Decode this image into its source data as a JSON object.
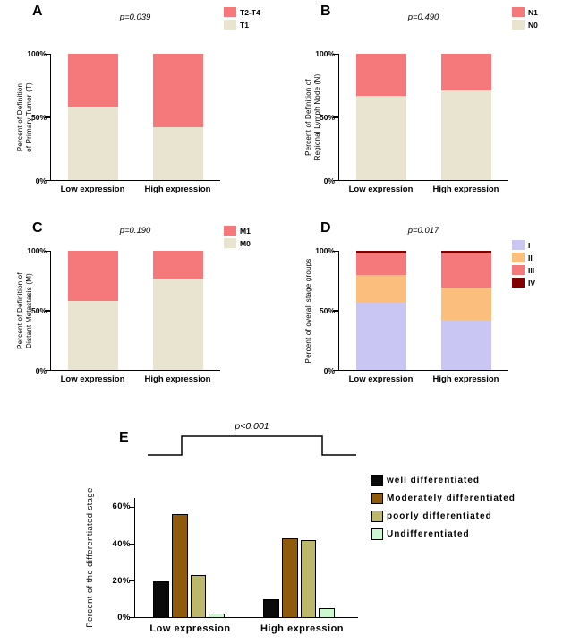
{
  "figure": {
    "background": "#FFFFFF"
  },
  "chart_data": [
    {
      "panel": "A",
      "type": "stacked_bar_100",
      "p_value": "p=0.039",
      "ylabel_lines": [
        "Percent of Definition",
        "of Primary Tumor (T)"
      ],
      "categories": [
        "Low expression",
        "High expression"
      ],
      "ylim": [
        0,
        100
      ],
      "yticks": [
        {
          "label": "100%",
          "value": 100
        },
        {
          "label": "50%",
          "value": 50
        },
        {
          "label": "0%",
          "value": 0
        }
      ],
      "legend": [
        {
          "label": "T2-T4",
          "color": "#F5797B"
        },
        {
          "label": "T1",
          "color": "#E8E4CF"
        }
      ],
      "series": [
        {
          "name": "T1",
          "color": "#E8E4CF",
          "values": [
            58,
            42
          ]
        },
        {
          "name": "T2-T4",
          "color": "#F5797B",
          "values": [
            42,
            58
          ]
        }
      ]
    },
    {
      "panel": "B",
      "type": "stacked_bar_100",
      "p_value": "p=0.490",
      "ylabel_lines": [
        "Percent of Definition of",
        "Regional Lymph Node (N)"
      ],
      "categories": [
        "Low expression",
        "High expression"
      ],
      "ylim": [
        0,
        100
      ],
      "yticks": [
        {
          "label": "100%",
          "value": 100
        },
        {
          "label": "50%",
          "value": 50
        },
        {
          "label": "0%",
          "value": 0
        }
      ],
      "legend": [
        {
          "label": "N1",
          "color": "#F5797B"
        },
        {
          "label": "N0",
          "color": "#E8E4CF"
        }
      ],
      "series": [
        {
          "name": "N0",
          "color": "#E8E4CF",
          "values": [
            67,
            71
          ]
        },
        {
          "name": "N1",
          "color": "#F5797B",
          "values": [
            33,
            29
          ]
        }
      ]
    },
    {
      "panel": "C",
      "type": "stacked_bar_100",
      "p_value": "p=0.190",
      "ylabel_lines": [
        "Percent of Definition of",
        "Distant Metastasis (M)"
      ],
      "categories": [
        "Low expression",
        "High expression"
      ],
      "ylim": [
        0,
        100
      ],
      "yticks": [
        {
          "label": "100%",
          "value": 100
        },
        {
          "label": "50%",
          "value": 50
        },
        {
          "label": "0%",
          "value": 0
        }
      ],
      "legend": [
        {
          "label": "M1",
          "color": "#F5797B"
        },
        {
          "label": "M0",
          "color": "#E8E4CF"
        }
      ],
      "series": [
        {
          "name": "M0",
          "color": "#E8E4CF",
          "values": [
            58,
            77
          ]
        },
        {
          "name": "M1",
          "color": "#F5797B",
          "values": [
            42,
            23
          ]
        }
      ]
    },
    {
      "panel": "D",
      "type": "stacked_bar_100",
      "p_value": "p=0.017",
      "ylabel_lines": [
        "Percent of overall stage groups"
      ],
      "categories": [
        "Low expression",
        "High expression"
      ],
      "ylim": [
        0,
        100
      ],
      "yticks": [
        {
          "label": "100%",
          "value": 100
        },
        {
          "label": "50%",
          "value": 50
        },
        {
          "label": "0%",
          "value": 0
        }
      ],
      "legend": [
        {
          "label": "I",
          "color": "#C9C6F4"
        },
        {
          "label": "II",
          "color": "#FBBE7D"
        },
        {
          "label": "III",
          "color": "#F5797B"
        },
        {
          "label": "IV",
          "color": "#800000"
        }
      ],
      "series": [
        {
          "name": "I",
          "color": "#C9C6F4",
          "values": [
            57,
            42
          ]
        },
        {
          "name": "II",
          "color": "#FBBE7D",
          "values": [
            23,
            27
          ]
        },
        {
          "name": "III",
          "color": "#F5797B",
          "values": [
            18,
            29
          ]
        },
        {
          "name": "IV",
          "color": "#800000",
          "values": [
            2,
            2
          ]
        }
      ]
    },
    {
      "panel": "E",
      "type": "grouped_bar",
      "p_value": "p<0.001",
      "ylabel_lines": [
        "Percent of the differentiated stage"
      ],
      "categories": [
        "Low expression",
        "High expression"
      ],
      "ylim": [
        0,
        65
      ],
      "yticks": [
        {
          "label": "60%",
          "value": 60
        },
        {
          "label": "40%",
          "value": 40
        },
        {
          "label": "20%",
          "value": 20
        },
        {
          "label": "0%",
          "value": 0
        }
      ],
      "legend": [
        {
          "label": "well differentiated",
          "color": "#0A0A0A"
        },
        {
          "label": "Moderately differentiated",
          "color": "#8F5A0B"
        },
        {
          "label": "poorly differentiated",
          "color": "#BDB76B"
        },
        {
          "label": "Undifferentiated",
          "color": "#CCF8CF"
        }
      ],
      "series": [
        {
          "name": "well differentiated",
          "color": "#0A0A0A",
          "values": [
            19.5,
            10
          ]
        },
        {
          "name": "Moderately differentiated",
          "color": "#8F5A0B",
          "values": [
            56,
            43
          ]
        },
        {
          "name": "poorly differentiated",
          "color": "#BDB76B",
          "values": [
            23,
            42
          ]
        },
        {
          "name": "Undifferentiated",
          "color": "#CCF8CF",
          "values": [
            2,
            5
          ]
        }
      ]
    }
  ]
}
